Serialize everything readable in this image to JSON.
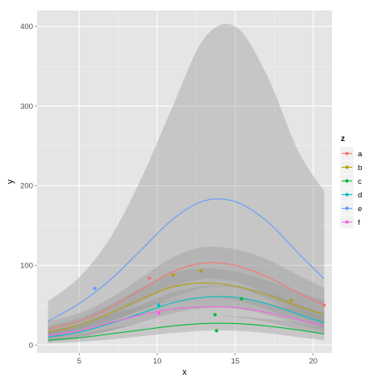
{
  "chart_data": {
    "type": "line",
    "title": "",
    "xlabel": "x",
    "ylabel": "y",
    "xlim": [
      2.3,
      21.2
    ],
    "ylim": [
      -10,
      420
    ],
    "xticks": [
      5,
      10,
      15,
      20
    ],
    "yticks": [
      0,
      100,
      200,
      300,
      400
    ],
    "grid": true,
    "background": "#e5e5e5",
    "band_color": "#999999",
    "legend": {
      "title": "z",
      "placement": "right"
    },
    "series": [
      {
        "name": "a",
        "color": "#f8766d",
        "points": [
          {
            "x": 9.5,
            "y": 84
          },
          {
            "x": 20.7,
            "y": 50
          }
        ],
        "fit": {
          "x": [
            3,
            5,
            7,
            9,
            11,
            13,
            15,
            17,
            19,
            20.7
          ],
          "y": [
            20,
            30,
            47,
            70,
            92,
            103,
            100,
            86,
            66,
            50
          ]
        },
        "band_low": [
          10,
          20,
          35,
          55,
          74,
          83,
          80,
          64,
          44,
          28
        ],
        "band_high": [
          30,
          40,
          59,
          85,
          110,
          123,
          120,
          108,
          88,
          72
        ]
      },
      {
        "name": "b",
        "color": "#b79f00",
        "points": [
          {
            "x": 11,
            "y": 88
          },
          {
            "x": 12.8,
            "y": 93
          },
          {
            "x": 18.6,
            "y": 56
          }
        ],
        "fit": {
          "x": [
            3,
            5,
            7,
            9,
            11,
            13,
            15,
            17,
            19,
            20.7
          ],
          "y": [
            16,
            25,
            40,
            58,
            73,
            78,
            74,
            63,
            49,
            38
          ]
        },
        "band_low": [
          8,
          16,
          29,
          44,
          56,
          60,
          56,
          45,
          31,
          20
        ],
        "band_high": [
          24,
          34,
          51,
          72,
          90,
          96,
          92,
          81,
          67,
          56
        ]
      },
      {
        "name": "c",
        "color": "#00ba38",
        "points": [
          {
            "x": 13.7,
            "y": 38
          },
          {
            "x": 13.8,
            "y": 18
          },
          {
            "x": 15.4,
            "y": 58
          }
        ],
        "fit": {
          "x": [
            3,
            5,
            7,
            9,
            11,
            13,
            15,
            17,
            19,
            20.7
          ],
          "y": [
            6,
            9,
            14,
            19,
            24,
            27,
            27,
            24,
            19,
            14
          ]
        },
        "band_low": [
          2,
          4,
          7,
          11,
          15,
          18,
          18,
          15,
          10,
          6
        ],
        "band_high": [
          10,
          14,
          21,
          27,
          33,
          36,
          36,
          33,
          28,
          22
        ]
      },
      {
        "name": "d",
        "color": "#00bfc4",
        "points": [
          {
            "x": 10.1,
            "y": 50
          }
        ],
        "fit": {
          "x": [
            3,
            5,
            7,
            9,
            11,
            13,
            15,
            17,
            19,
            20.7
          ],
          "y": [
            10,
            16,
            27,
            40,
            53,
            60,
            60,
            52,
            39,
            28
          ]
        },
        "band_low": [
          4,
          9,
          18,
          29,
          40,
          46,
          46,
          38,
          26,
          16
        ],
        "band_high": [
          16,
          23,
          36,
          51,
          66,
          74,
          74,
          66,
          52,
          40
        ]
      },
      {
        "name": "e",
        "color": "#619cff",
        "points": [
          {
            "x": 6,
            "y": 71
          }
        ],
        "fit": {
          "x": [
            3,
            5,
            7,
            9,
            11,
            13,
            15,
            17,
            19,
            20.7
          ],
          "y": [
            30,
            52,
            82,
            120,
            158,
            181,
            180,
            156,
            116,
            83
          ]
        },
        "band_low": [
          10,
          20,
          30,
          45,
          60,
          72,
          72,
          58,
          38,
          22
        ],
        "band_high": [
          55,
          85,
          135,
          210,
          300,
          385,
          400,
          340,
          245,
          193
        ]
      },
      {
        "name": "f",
        "color": "#f564e3",
        "points": [
          {
            "x": 10.1,
            "y": 40
          }
        ],
        "fit": {
          "x": [
            3,
            5,
            7,
            9,
            11,
            13,
            15,
            17,
            19,
            20.7
          ],
          "y": [
            12,
            18,
            28,
            38,
            45,
            48,
            47,
            41,
            32,
            24
          ]
        },
        "band_low": [
          6,
          10,
          18,
          27,
          33,
          36,
          35,
          29,
          20,
          13
        ],
        "band_high": [
          18,
          26,
          38,
          49,
          57,
          60,
          59,
          53,
          44,
          35
        ]
      }
    ]
  }
}
